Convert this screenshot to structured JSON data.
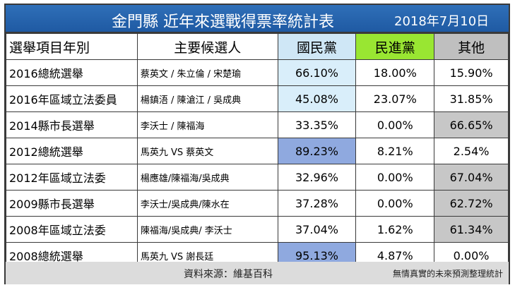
{
  "title": "金門縣 近年來選戰得票率統計表",
  "date": "2018年7月10日",
  "headers": [
    "選舉項目年別",
    "主要候選人",
    "國民黨",
    "民進黨",
    "其他"
  ],
  "rows": [
    {
      "item": "2016總統選舉",
      "candidates": "蔡英文 / 朱立倫 / 宋楚瑜",
      "kmt": "66.10%",
      "dpp": "18.00%",
      "other": "15.90%"
    },
    {
      "item": "2016年區域立法委員",
      "candidates": "楊鎮浯 / 陳滄江 / 吳成典",
      "kmt": "45.08%",
      "dpp": "23.07%",
      "other": "31.85%"
    },
    {
      "item": "2014縣市長選舉",
      "candidates": "李沃士 / 陳福海",
      "kmt": "33.35%",
      "dpp": "0.00%",
      "other": "66.65%"
    },
    {
      "item": "2012總統選舉",
      "candidates": "馬英九 VS 蔡英文",
      "kmt": "89.23%",
      "dpp": "8.21%",
      "other": "2.54%"
    },
    {
      "item": "2012年區域立法委",
      "candidates": "楊應雄/陳福海/吳成典",
      "kmt": "32.96%",
      "dpp": "0.00%",
      "other": "67.04%"
    },
    {
      "item": "2009縣市長選舉",
      "candidates": "李沃士/吳成典/陳水在",
      "kmt": "37.28%",
      "dpp": "0.00%",
      "other": "62.72%"
    },
    {
      "item": "2008年區域立法委",
      "candidates": "陳福海/吳成典/ 李沃士",
      "kmt": "37.04%",
      "dpp": "1.62%",
      "other": "61.34%"
    },
    {
      "item": "2008總統選舉",
      "candidates": "馬英九 VS 謝長廷",
      "kmt": "95.13%",
      "dpp": "4.87%",
      "other": "0.00%"
    }
  ],
  "footer": {
    "source": "資料來源：維基百科",
    "note": "無情真實的未來預測整理統計"
  },
  "colors": {
    "title_bg": "#1f5aa3",
    "kmt_header": "#cfe7f6",
    "dpp_header": "#99e632",
    "other_header": "#bfbfbf",
    "kmt_light": "#d9eefa",
    "kmt_strong": "#8fa9df",
    "other_highlight": "#c7c7c7"
  }
}
